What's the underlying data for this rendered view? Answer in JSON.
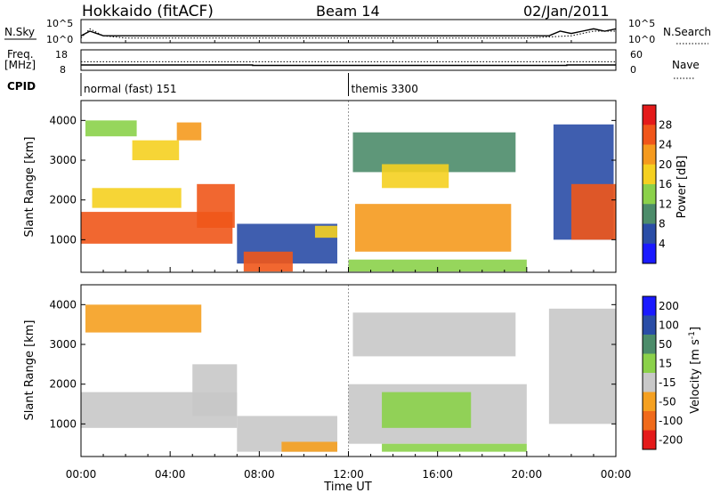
{
  "header": {
    "site": "Hokkaido (fitACF)",
    "beam": "Beam 14",
    "date": "02/Jan/2011"
  },
  "labels": {
    "nsky": "N.Sky",
    "nsearch": "N.Search",
    "freq_line1": "Freq.",
    "freq_line2": "[MHz]",
    "nave": "Nave",
    "cpid": "CPID"
  },
  "colors": {
    "background": "#ffffff",
    "axis": "#000000",
    "no_data": "#ffffff"
  },
  "chart_data": [
    {
      "id": "noise_panel",
      "type": "line",
      "x_unit": "hours UT",
      "xlim": [
        0,
        24
      ],
      "left_ticks": [
        "10^5",
        "10^0"
      ],
      "right_ticks": [
        "10^5",
        "10^0"
      ],
      "left_label": "N.Sky",
      "right_label": "N.Search",
      "series": [
        {
          "name": "N.Sky",
          "style": "solid",
          "x": [
            0,
            0.4,
            1,
            2,
            3,
            4,
            5,
            6,
            7,
            8,
            9,
            10,
            11,
            12,
            13,
            14,
            15,
            16,
            17,
            18,
            19,
            20,
            21,
            21.5,
            22,
            22.5,
            23,
            23.5,
            24
          ],
          "level": [
            0.3,
            0.5,
            0.3,
            0.3,
            0.3,
            0.3,
            0.3,
            0.3,
            0.3,
            0.3,
            0.3,
            0.3,
            0.3,
            0.3,
            0.3,
            0.3,
            0.3,
            0.3,
            0.3,
            0.3,
            0.3,
            0.3,
            0.3,
            0.5,
            0.4,
            0.5,
            0.6,
            0.5,
            0.6
          ]
        },
        {
          "name": "N.Search",
          "style": "dotted",
          "x": [
            0,
            0.4,
            1,
            2,
            4,
            6,
            8,
            10,
            12,
            14,
            16,
            18,
            20,
            22,
            23,
            24
          ],
          "level": [
            0.2,
            0.6,
            0.3,
            0.2,
            0.2,
            0.2,
            0.2,
            0.2,
            0.2,
            0.2,
            0.2,
            0.2,
            0.2,
            0.3,
            0.5,
            0.5
          ]
        }
      ]
    },
    {
      "id": "freq_panel",
      "type": "line",
      "x_unit": "hours UT",
      "xlim": [
        0,
        24
      ],
      "left_ticks": [
        "18",
        "8"
      ],
      "right_ticks": [
        "60",
        "0"
      ],
      "left_label": "Freq. [MHz]",
      "right_label": "Nave",
      "series": [
        {
          "name": "Freq.",
          "style": "solid",
          "x": [
            0,
            7.7,
            7.7,
            21.8,
            21.8,
            24
          ],
          "y": [
            10.6,
            10.6,
            10.4,
            10.4,
            10.6,
            10.6
          ],
          "ylim": [
            8,
            18
          ]
        },
        {
          "name": "Nave",
          "style": "dotted",
          "x": [
            0,
            24
          ],
          "y": [
            25,
            25
          ],
          "ylim": [
            0,
            60
          ]
        }
      ]
    },
    {
      "id": "cpid_panel",
      "type": "table",
      "xlim": [
        0,
        24
      ],
      "programs": [
        {
          "label": "normal (fast) 151",
          "start": 0,
          "end": 12.0
        },
        {
          "label": "themis 3300",
          "start": 12.0,
          "end": 24
        }
      ]
    },
    {
      "id": "power_panel",
      "type": "heatmap",
      "x_unit": "hours UT",
      "xlim": [
        0,
        24
      ],
      "ylim": [
        180,
        4500
      ],
      "ylabel": "Slant Range [km]",
      "yticks": [
        1000,
        2000,
        3000,
        4000
      ],
      "colorbar": {
        "label": "Power [dB]",
        "ticks": [
          4,
          8,
          12,
          16,
          20,
          24,
          28
        ],
        "range": [
          0,
          32
        ],
        "colors": [
          "#1a1aff",
          "#2a4da6",
          "#4c8c6a",
          "#8bd14a",
          "#f5d020",
          "#f59a1e",
          "#f0561a",
          "#e41a1a"
        ]
      },
      "regions": [
        {
          "t0": 0,
          "t1": 6.8,
          "r0": 900,
          "r1": 1700,
          "value": 26
        },
        {
          "t0": 5.2,
          "t1": 6.9,
          "r0": 1300,
          "r1": 2400,
          "value": 24
        },
        {
          "t0": 0.5,
          "t1": 4.5,
          "r0": 1800,
          "r1": 2300,
          "value": 18
        },
        {
          "t0": 0.2,
          "t1": 2.5,
          "r0": 3600,
          "r1": 4000,
          "value": 14
        },
        {
          "t0": 2.3,
          "t1": 4.4,
          "r0": 3000,
          "r1": 3500,
          "value": 18
        },
        {
          "t0": 4.3,
          "t1": 5.4,
          "r0": 3500,
          "r1": 3950,
          "value": 21
        },
        {
          "t0": 7.0,
          "t1": 11.5,
          "r0": 400,
          "r1": 1400,
          "value": 6
        },
        {
          "t0": 7.3,
          "t1": 9.5,
          "r0": 200,
          "r1": 700,
          "value": 25
        },
        {
          "t0": 10.5,
          "t1": 11.5,
          "r0": 1050,
          "r1": 1350,
          "value": 18
        },
        {
          "t0": 12.3,
          "t1": 19.3,
          "r0": 700,
          "r1": 1900,
          "value": 23
        },
        {
          "t0": 12.2,
          "t1": 19.5,
          "r0": 2700,
          "r1": 3700,
          "value": 9
        },
        {
          "t0": 13.5,
          "t1": 16.5,
          "r0": 2300,
          "r1": 2900,
          "value": 17
        },
        {
          "t0": 12.0,
          "t1": 20.0,
          "r0": 200,
          "r1": 500,
          "value": 12
        },
        {
          "t0": 21.2,
          "t1": 23.9,
          "r0": 1000,
          "r1": 3900,
          "value": 7
        },
        {
          "t0": 22.0,
          "t1": 24.0,
          "r0": 1000,
          "r1": 2400,
          "value": 26
        }
      ]
    },
    {
      "id": "velocity_panel",
      "type": "heatmap",
      "x_unit": "hours UT",
      "xlim": [
        0,
        24
      ],
      "ylim": [
        180,
        4500
      ],
      "ylabel": "Slant Range [km]",
      "yticks": [
        1000,
        2000,
        3000,
        4000
      ],
      "colorbar": {
        "label": "Velocity [m s-1]",
        "ticks": [
          200,
          100,
          50,
          15,
          -15,
          -50,
          -100,
          -200
        ],
        "range": [
          -250,
          250
        ],
        "colors": [
          "#1a1aff",
          "#2a4da6",
          "#4c8c6a",
          "#8bd14a",
          "#c8c8c8",
          "#f5a020",
          "#f06a1a",
          "#e41a1a"
        ]
      },
      "regions": [
        {
          "t0": 0,
          "t1": 7.0,
          "r0": 900,
          "r1": 1800,
          "value": 0
        },
        {
          "t0": 5.0,
          "t1": 7.0,
          "r0": 1200,
          "r1": 2500,
          "value": 0
        },
        {
          "t0": 0.2,
          "t1": 5.4,
          "r0": 3300,
          "r1": 4000,
          "value": -20
        },
        {
          "t0": 7.0,
          "t1": 11.5,
          "r0": 300,
          "r1": 1200,
          "value": 0
        },
        {
          "t0": 9.0,
          "t1": 11.5,
          "r0": 300,
          "r1": 550,
          "value": -40
        },
        {
          "t0": 12.0,
          "t1": 20.0,
          "r0": 500,
          "r1": 2000,
          "value": 0
        },
        {
          "t0": 13.5,
          "t1": 17.5,
          "r0": 900,
          "r1": 1800,
          "value": 30
        },
        {
          "t0": 12.2,
          "t1": 19.5,
          "r0": 2700,
          "r1": 3800,
          "value": 0
        },
        {
          "t0": 13.5,
          "t1": 20.0,
          "r0": 300,
          "r1": 500,
          "value": 30
        },
        {
          "t0": 21.0,
          "t1": 24.0,
          "r0": 1000,
          "r1": 3900,
          "value": 0
        }
      ]
    }
  ],
  "xaxis": {
    "label": "Time UT",
    "ticks": [
      "00:00",
      "04:00",
      "08:00",
      "12:00",
      "16:00",
      "20:00",
      "00:00"
    ]
  }
}
